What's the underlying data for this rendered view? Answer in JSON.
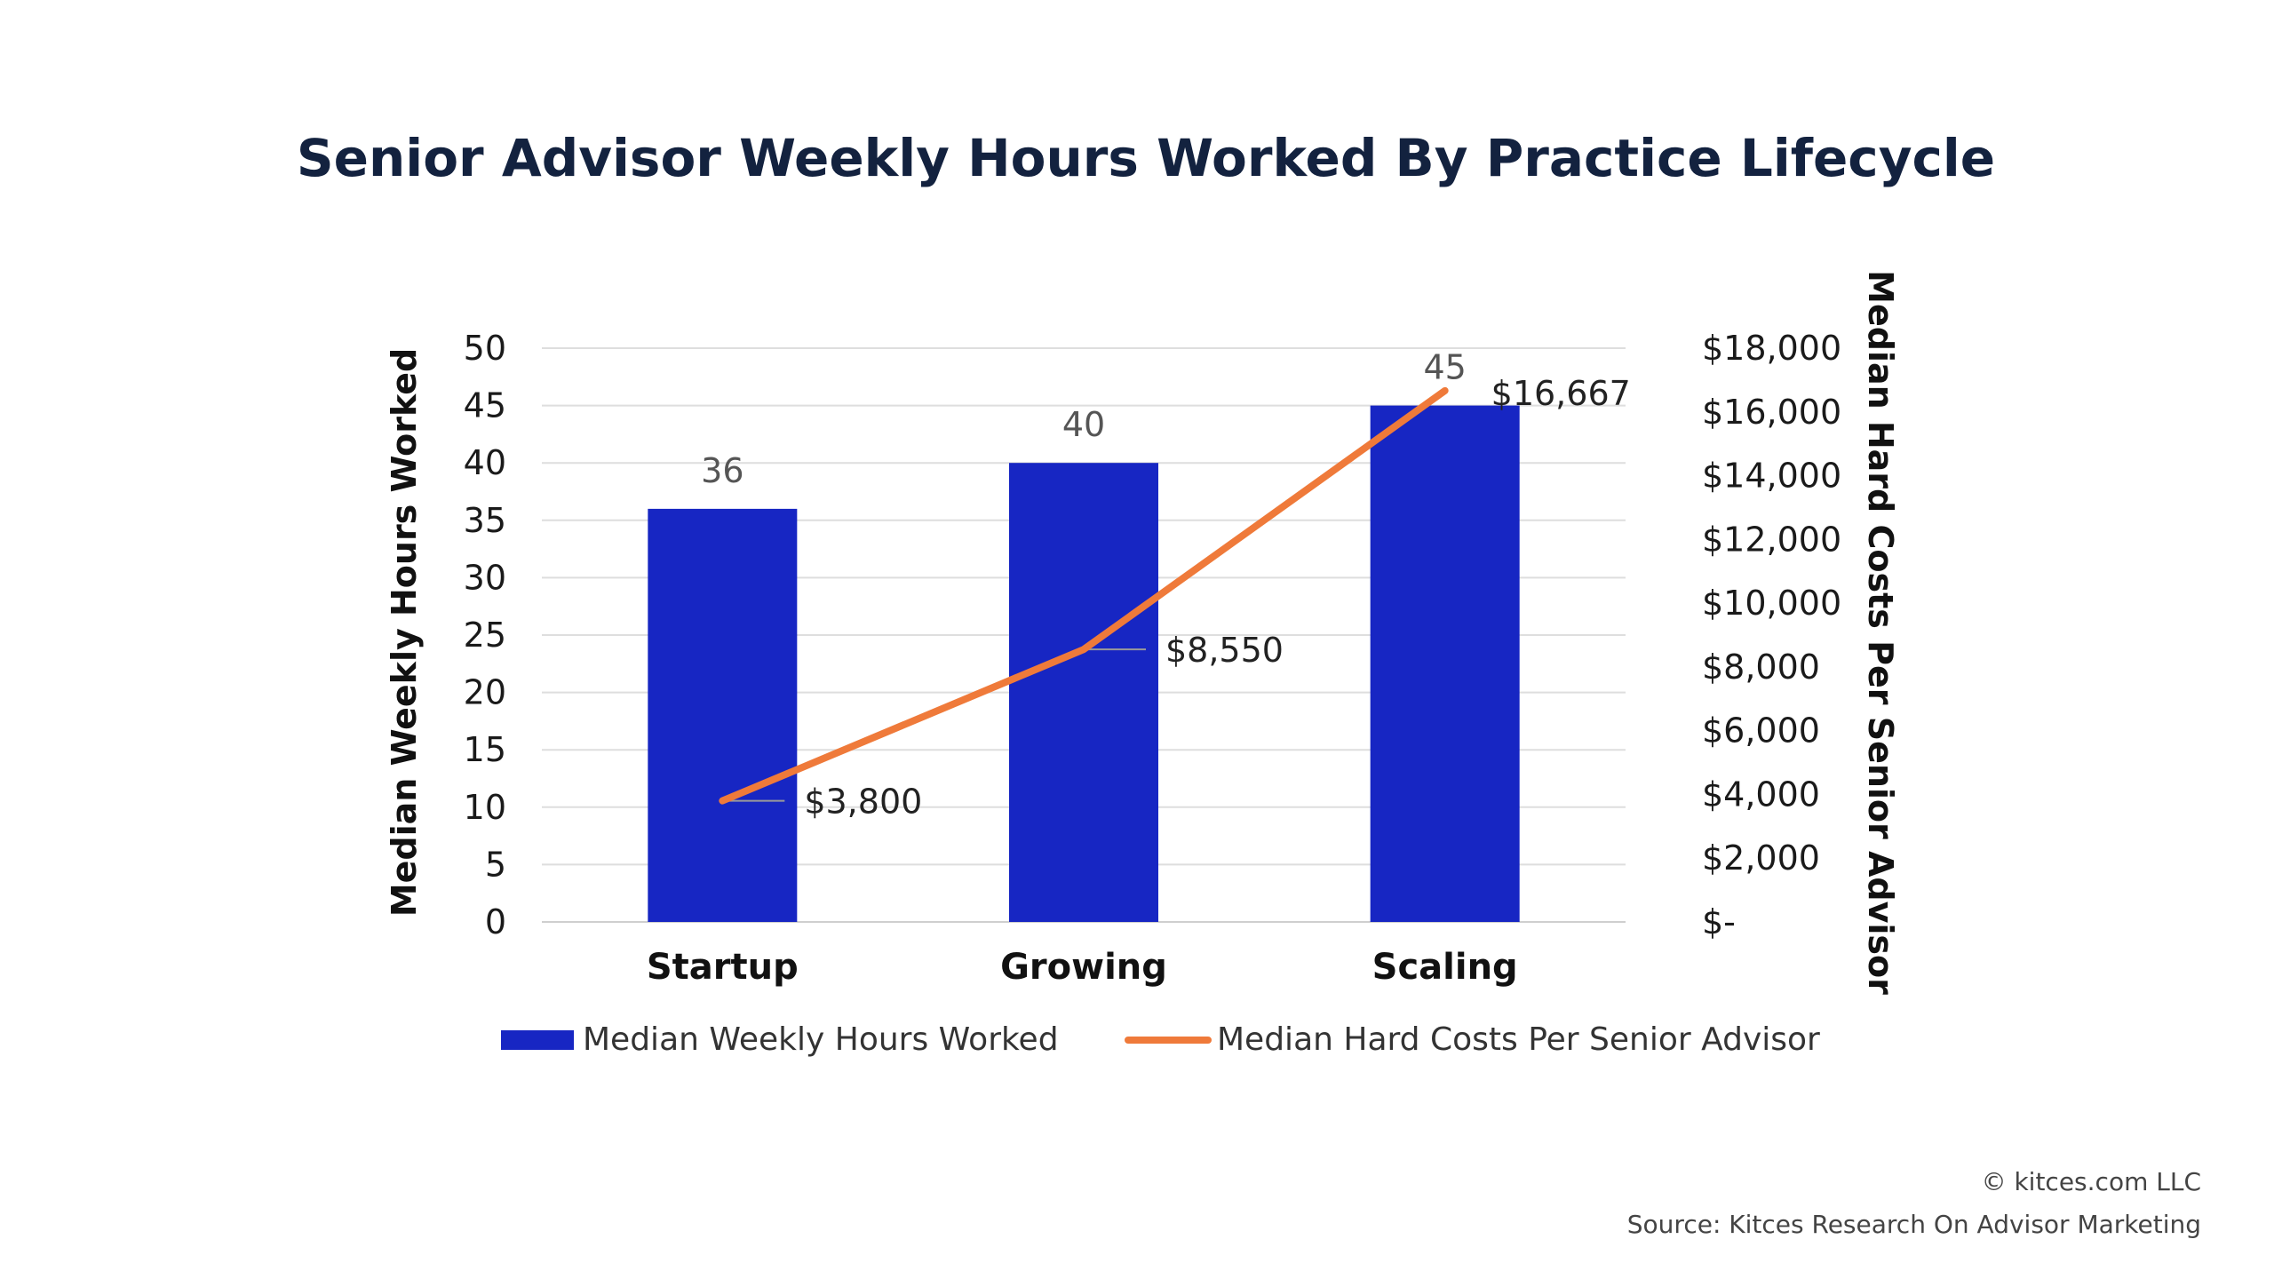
{
  "chart_data": {
    "type": "bar",
    "title": "Senior Advisor Weekly Hours Worked By Practice Lifecycle",
    "categories": [
      "Startup",
      "Growing",
      "Scaling"
    ],
    "series": [
      {
        "name": "Median Weekly Hours Worked",
        "type": "bar",
        "axis": "left",
        "values": [
          36,
          40,
          45
        ],
        "labels": [
          "36",
          "40",
          "45"
        ],
        "color": "#1726c3"
      },
      {
        "name": "Median Hard Costs Per Senior Advisor",
        "type": "line",
        "axis": "right",
        "values": [
          3800,
          8550,
          16667
        ],
        "labels": [
          "$3,800",
          "$8,550",
          "$16,667"
        ],
        "color": "#ef7a3a"
      }
    ],
    "ylabel": "Median Weekly Hours Worked",
    "ylim": [
      0,
      50
    ],
    "yticks": [
      "0",
      "5",
      "10",
      "15",
      "20",
      "25",
      "30",
      "35",
      "40",
      "45",
      "50"
    ],
    "y2label": "Median Hard Costs Per Senior Advisor",
    "y2lim": [
      0,
      18000
    ],
    "y2ticks": [
      "$-",
      "$2,000",
      "$4,000",
      "$6,000",
      "$8,000",
      "$10,000",
      "$12,000",
      "$14,000",
      "$16,000",
      "$18,000"
    ],
    "grid": true,
    "legend_position": "bottom"
  },
  "footer": {
    "copyright": "© kitces.com LLC",
    "source": "Source: Kitces Research On Advisor Marketing"
  }
}
